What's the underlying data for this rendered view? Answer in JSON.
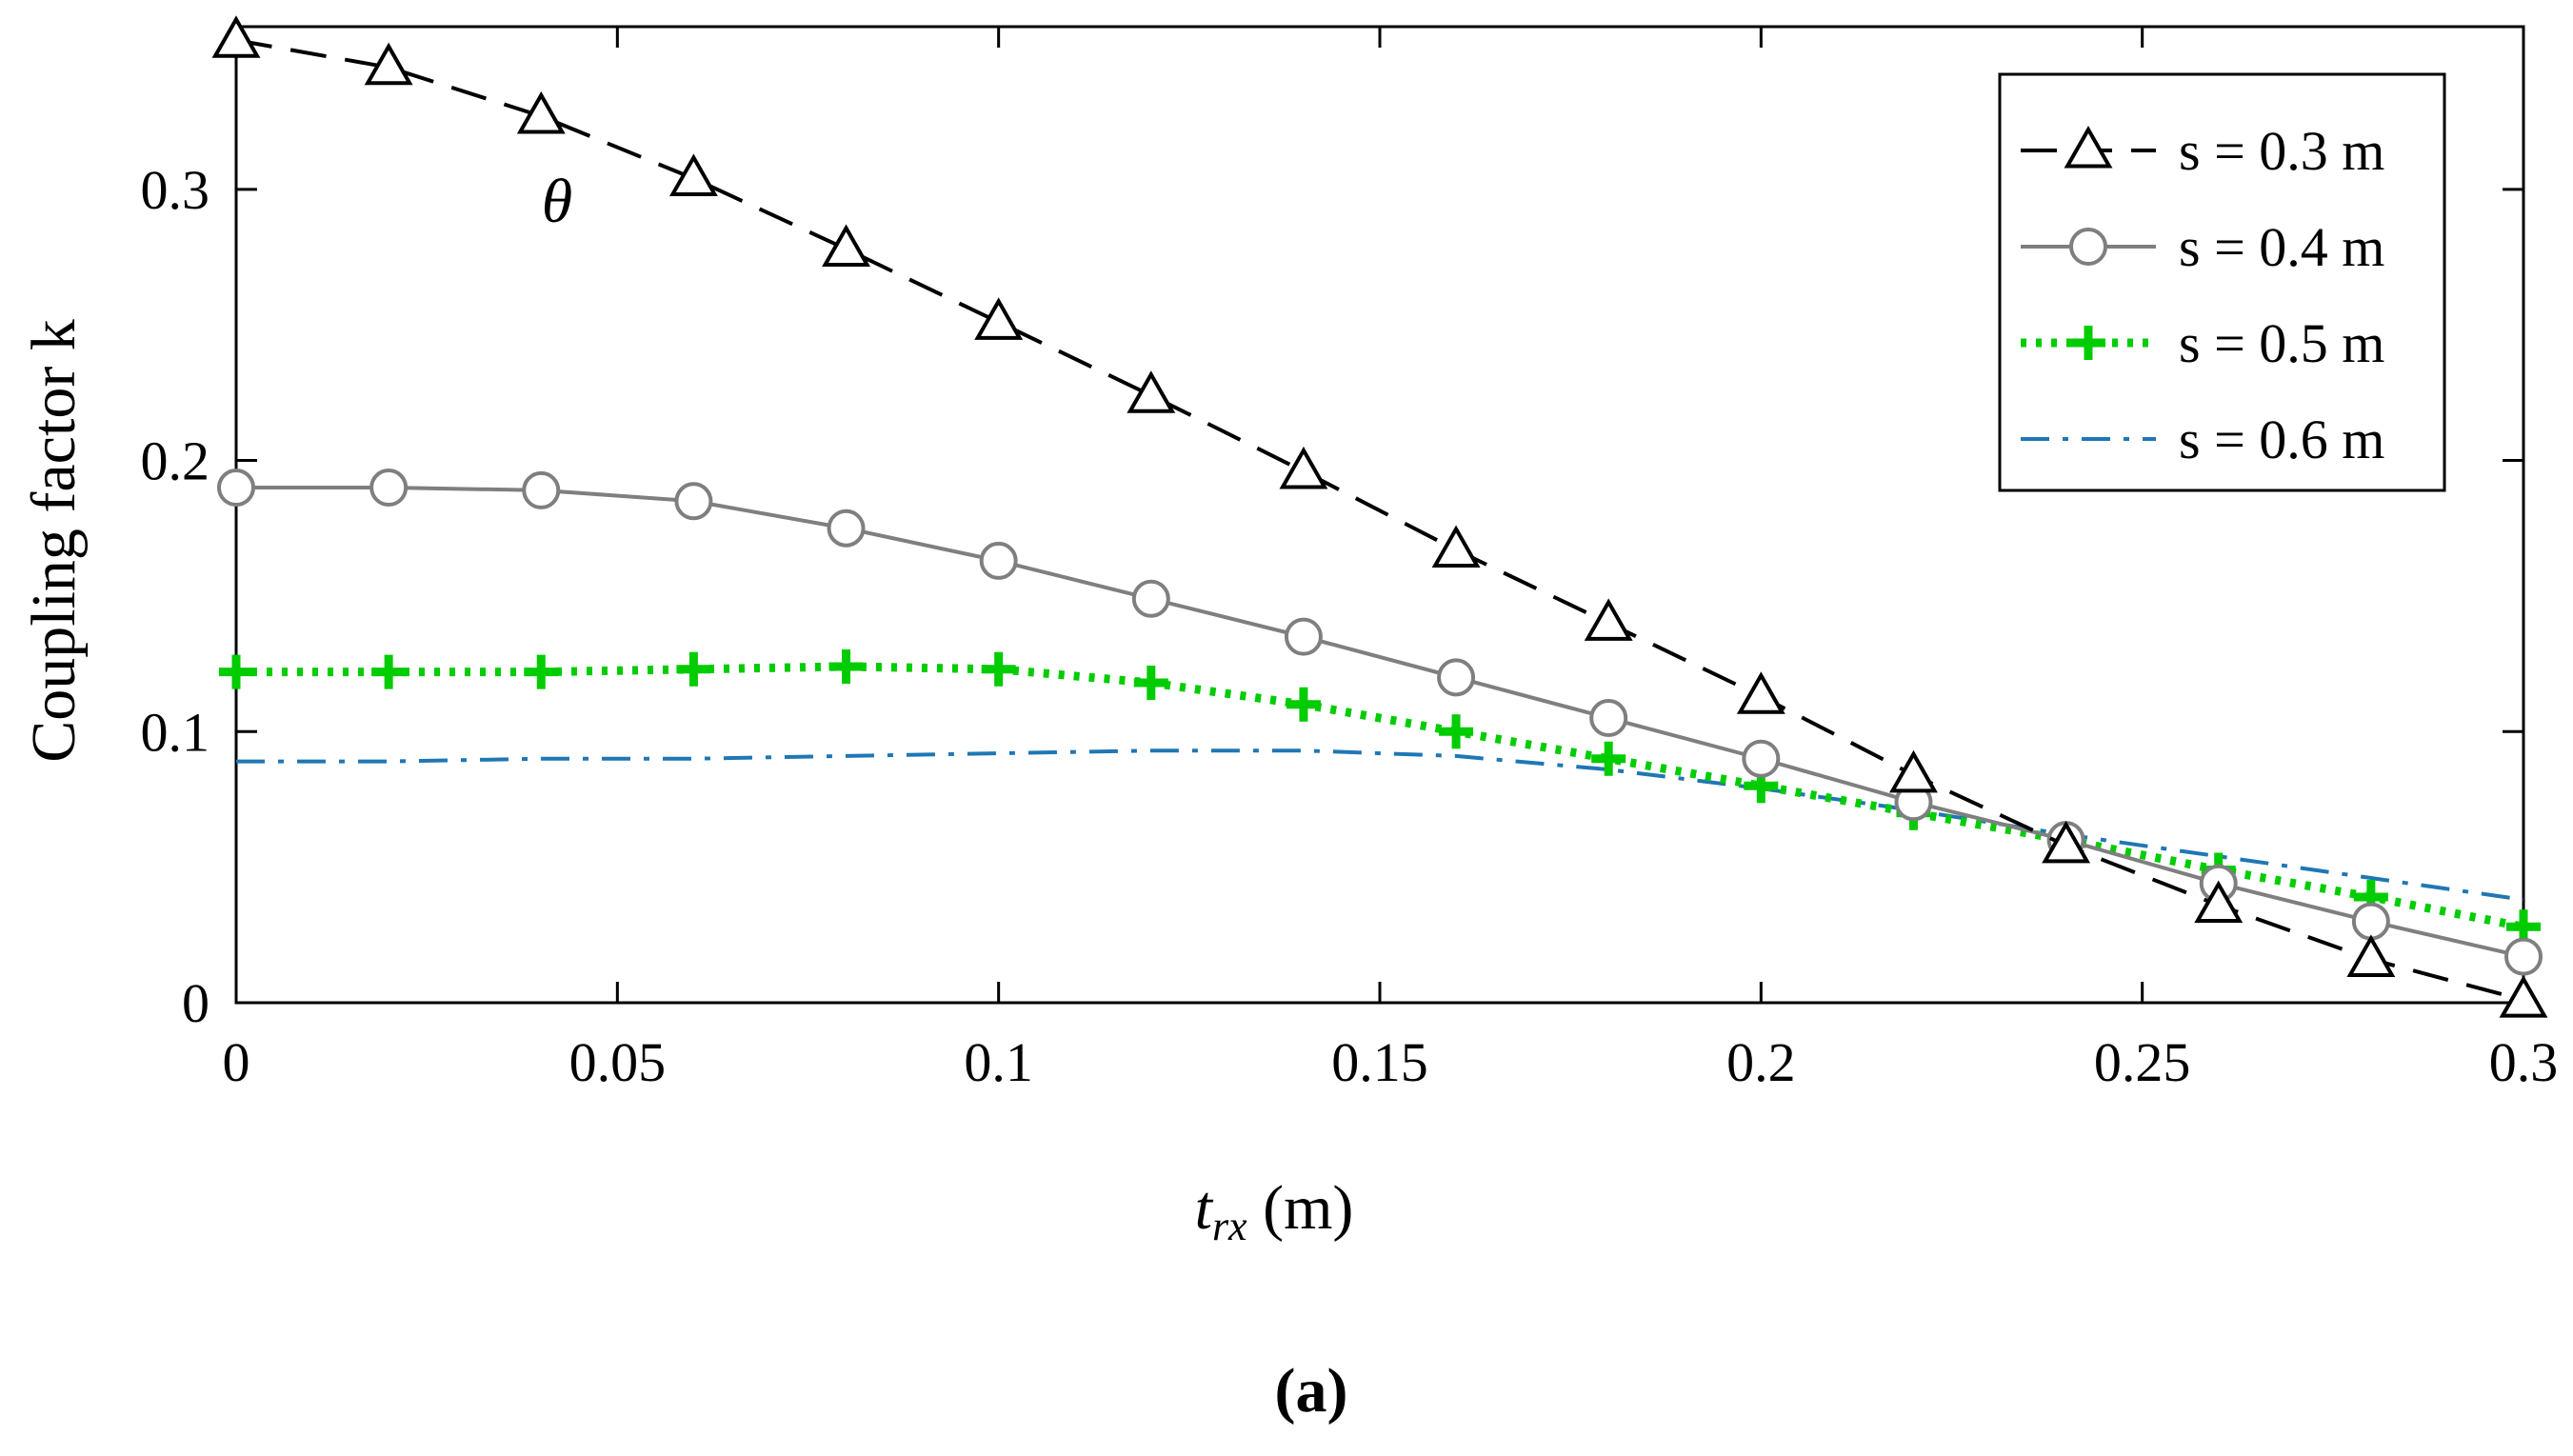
{
  "chart_data": {
    "type": "line",
    "title": "",
    "xlabel": "t_rx (m)",
    "xlabel_main": "t",
    "xlabel_sub": "rx",
    "xlabel_unit": " (m)",
    "ylabel": "Coupling factor k",
    "xlim": [
      0,
      0.3
    ],
    "ylim": [
      0,
      0.36
    ],
    "xticks": [
      0,
      0.05,
      0.1,
      0.15,
      0.2,
      0.25,
      0.3
    ],
    "xtick_labels": [
      "0",
      "0.05",
      "0.1",
      "0.15",
      "0.2",
      "0.25",
      "0.3"
    ],
    "yticks": [
      0,
      0.1,
      0.2,
      0.3
    ],
    "ytick_labels": [
      "0",
      "0.1",
      "0.2",
      "0.3"
    ],
    "grid": false,
    "legend_position": "top-right",
    "annotation": "θ",
    "panel_label": "(a)",
    "x": [
      0,
      0.02,
      0.04,
      0.06,
      0.08,
      0.1,
      0.12,
      0.14,
      0.16,
      0.18,
      0.2,
      0.22,
      0.24,
      0.26,
      0.28,
      0.3
    ],
    "series": [
      {
        "name": "s = 0.3 m",
        "marker": "triangle",
        "color": "#000000",
        "dash": "dashed",
        "values": [
          0.355,
          0.345,
          0.327,
          0.304,
          0.278,
          0.251,
          0.224,
          0.196,
          0.167,
          0.14,
          0.113,
          0.084,
          0.058,
          0.036,
          0.016,
          0.001
        ]
      },
      {
        "name": "s = 0.4 m",
        "marker": "circle",
        "color": "#7f7f7f",
        "dash": "solid",
        "values": [
          0.19,
          0.19,
          0.189,
          0.185,
          0.175,
          0.163,
          0.149,
          0.135,
          0.12,
          0.105,
          0.09,
          0.074,
          0.06,
          0.044,
          0.03,
          0.017
        ]
      },
      {
        "name": "s = 0.5 m",
        "marker": "plus",
        "color": "#00cc00",
        "dash": "dotted",
        "values": [
          0.122,
          0.122,
          0.122,
          0.123,
          0.124,
          0.123,
          0.118,
          0.11,
          0.1,
          0.09,
          0.08,
          0.07,
          0.06,
          0.049,
          0.039,
          0.028
        ]
      },
      {
        "name": "s = 0.6 m",
        "marker": "none",
        "color": "#1f77b4",
        "dash": "dashdot",
        "values": [
          0.089,
          0.089,
          0.09,
          0.09,
          0.091,
          0.092,
          0.093,
          0.093,
          0.091,
          0.086,
          0.079,
          0.071,
          0.062,
          0.054,
          0.046,
          0.038
        ]
      }
    ]
  }
}
